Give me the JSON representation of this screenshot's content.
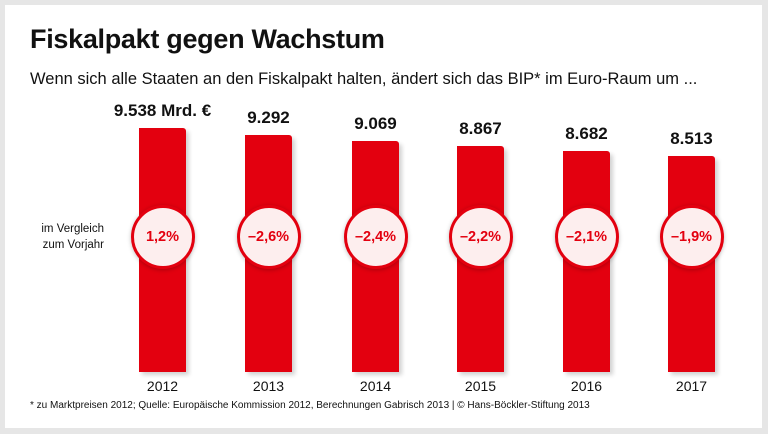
{
  "title": "Fiskalpakt gegen Wachstum",
  "subtitle": "Wenn sich alle Staaten an den Fiskalpakt halten, ändert sich das BIP* im Euro-Raum um ...",
  "side_label": [
    "im Vergleich",
    "zum Vorjahr"
  ],
  "footnote": "* zu Marktpreisen 2012; Quelle: Europäische Kommission 2012, Berechnungen Gabrisch 2013 | © Hans-Böckler-Stiftung 2013",
  "colors": {
    "bar": "#e3000f",
    "circle_fill": "#fdeeee",
    "background": "#e6e6e6"
  },
  "chart_data": {
    "type": "bar",
    "categories": [
      "2012",
      "2013",
      "2014",
      "2015",
      "2016",
      "2017"
    ],
    "values": [
      9538,
      9292,
      9069,
      8867,
      8682,
      8513
    ],
    "value_labels": [
      "9.538 Mrd. €",
      "9.292",
      "9.069",
      "8.867",
      "8.682",
      "8.513"
    ],
    "change_labels": [
      "1,2%",
      "–2,6%",
      "–2,4%",
      "–2,2%",
      "–2,1%",
      "–1,9%"
    ],
    "unit": "Mrd. €",
    "grid": false
  }
}
